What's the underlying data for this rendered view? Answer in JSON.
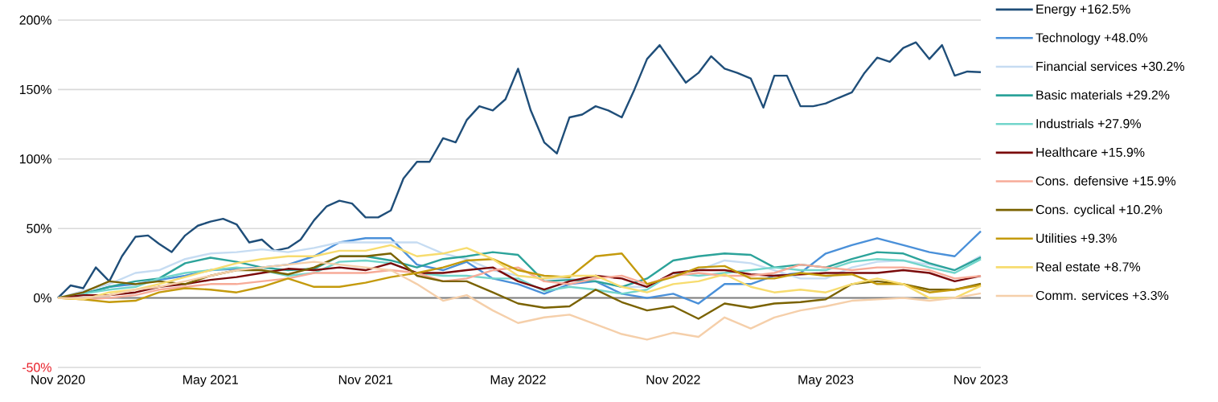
{
  "chart_data": {
    "type": "line",
    "ylim": [
      -50,
      200
    ],
    "yticks": [
      {
        "value": -50,
        "label": "-50%"
      },
      {
        "value": 0,
        "label": "0%"
      },
      {
        "value": 50,
        "label": "50%"
      },
      {
        "value": 100,
        "label": "100%"
      },
      {
        "value": 150,
        "label": "150%"
      },
      {
        "value": 200,
        "label": "200%"
      }
    ],
    "xlim": [
      "2020-11-01",
      "2023-11-01"
    ],
    "xticks": [
      {
        "value": "2020-11-01",
        "label": "Nov 2020"
      },
      {
        "value": "2021-05-01",
        "label": "May 2021"
      },
      {
        "value": "2021-11-01",
        "label": "Nov 2021"
      },
      {
        "value": "2022-05-01",
        "label": "May 2022"
      },
      {
        "value": "2022-11-01",
        "label": "Nov 2022"
      },
      {
        "value": "2023-05-01",
        "label": "May 2023"
      },
      {
        "value": "2023-11-01",
        "label": "Nov 2023"
      }
    ],
    "grid": "y",
    "legend": "right",
    "ref_lines": [
      {
        "axis": "y",
        "value": 0,
        "color": "#808080"
      }
    ],
    "series": [
      {
        "name": "Energy +162.5%",
        "color": "#1f4e79",
        "x": [
          "2020-11-01",
          "2020-11-16",
          "2020-12-01",
          "2020-12-16",
          "2021-01-01",
          "2021-01-16",
          "2021-02-01",
          "2021-02-16",
          "2021-03-01",
          "2021-03-16",
          "2021-04-01",
          "2021-04-16",
          "2021-05-01",
          "2021-05-16",
          "2021-06-01",
          "2021-06-16",
          "2021-07-01",
          "2021-07-16",
          "2021-08-01",
          "2021-08-16",
          "2021-09-01",
          "2021-09-16",
          "2021-10-01",
          "2021-10-16",
          "2021-11-01",
          "2021-11-16",
          "2021-12-01",
          "2021-12-16",
          "2022-01-01",
          "2022-01-16",
          "2022-02-01",
          "2022-02-16",
          "2022-03-01",
          "2022-03-16",
          "2022-04-01",
          "2022-04-16",
          "2022-05-01",
          "2022-05-16",
          "2022-06-01",
          "2022-06-16",
          "2022-07-01",
          "2022-07-16",
          "2022-08-01",
          "2022-08-16",
          "2022-09-01",
          "2022-09-16",
          "2022-10-01",
          "2022-10-16",
          "2022-11-01",
          "2022-11-16",
          "2022-12-01",
          "2022-12-16",
          "2023-01-01",
          "2023-01-16",
          "2023-02-01",
          "2023-02-16",
          "2023-03-01",
          "2023-03-16",
          "2023-04-01",
          "2023-04-16",
          "2023-05-01",
          "2023-05-16",
          "2023-06-01",
          "2023-06-16",
          "2023-07-01",
          "2023-07-16",
          "2023-08-01",
          "2023-08-16",
          "2023-09-01",
          "2023-09-16",
          "2023-10-01",
          "2023-10-16",
          "2023-11-01"
        ],
        "values": [
          0,
          9,
          7,
          22,
          12,
          30,
          44,
          45,
          39,
          33,
          45,
          52,
          55,
          57,
          53,
          40,
          42,
          34,
          36,
          42,
          56,
          66,
          70,
          68,
          58,
          58,
          63,
          86,
          98,
          98,
          115,
          112,
          128,
          138,
          135,
          143,
          165,
          135,
          112,
          104,
          130,
          132,
          138,
          135,
          130,
          150,
          172,
          182,
          168,
          155,
          162,
          174,
          165,
          162,
          158,
          137,
          160,
          160,
          138,
          138,
          140,
          144,
          148,
          162,
          173,
          170,
          180,
          184,
          172,
          182,
          160,
          163,
          162.5
        ]
      },
      {
        "name": "Technology +48.0%",
        "color": "#4a90d9",
        "x": [
          "2020-11-01",
          "2020-12-01",
          "2021-01-01",
          "2021-02-01",
          "2021-03-01",
          "2021-04-01",
          "2021-05-01",
          "2021-06-01",
          "2021-07-01",
          "2021-08-01",
          "2021-09-01",
          "2021-10-01",
          "2021-11-01",
          "2021-12-01",
          "2022-01-01",
          "2022-02-01",
          "2022-03-01",
          "2022-04-01",
          "2022-05-01",
          "2022-06-01",
          "2022-07-01",
          "2022-08-01",
          "2022-09-01",
          "2022-10-01",
          "2022-11-01",
          "2022-12-01",
          "2023-01-01",
          "2023-02-01",
          "2023-03-01",
          "2023-04-01",
          "2023-05-01",
          "2023-06-01",
          "2023-07-01",
          "2023-08-01",
          "2023-09-01",
          "2023-10-01",
          "2023-11-01"
        ],
        "values": [
          0,
          3,
          8,
          10,
          13,
          16,
          20,
          21,
          22,
          24,
          30,
          40,
          43,
          43,
          24,
          20,
          26,
          14,
          10,
          3,
          10,
          12,
          3,
          0,
          3,
          -4,
          10,
          10,
          16,
          18,
          32,
          38,
          43,
          38,
          33,
          30,
          48
        ]
      },
      {
        "name": "Financial services +30.2%",
        "color": "#c6dcf2",
        "x": [
          "2020-11-01",
          "2020-12-01",
          "2021-01-01",
          "2021-02-01",
          "2021-03-01",
          "2021-04-01",
          "2021-05-01",
          "2021-06-01",
          "2021-07-01",
          "2021-08-01",
          "2021-09-01",
          "2021-10-01",
          "2021-11-01",
          "2021-12-01",
          "2022-01-01",
          "2022-02-01",
          "2022-03-01",
          "2022-04-01",
          "2022-05-01",
          "2022-06-01",
          "2022-07-01",
          "2022-08-01",
          "2022-09-01",
          "2022-10-01",
          "2022-11-01",
          "2022-12-01",
          "2023-01-01",
          "2023-02-01",
          "2023-03-01",
          "2023-04-01",
          "2023-05-01",
          "2023-06-01",
          "2023-07-01",
          "2023-08-01",
          "2023-09-01",
          "2023-10-01",
          "2023-11-01"
        ],
        "values": [
          0,
          5,
          10,
          18,
          20,
          28,
          32,
          33,
          35,
          33,
          36,
          40,
          40,
          40,
          40,
          32,
          28,
          20,
          16,
          14,
          14,
          12,
          8,
          8,
          18,
          20,
          27,
          25,
          20,
          14,
          14,
          22,
          26,
          27,
          24,
          20,
          30.2
        ]
      },
      {
        "name": "Basic materials +29.2%",
        "color": "#2ca39a",
        "x": [
          "2020-11-01",
          "2020-12-01",
          "2021-01-01",
          "2021-02-01",
          "2021-03-01",
          "2021-04-01",
          "2021-05-01",
          "2021-06-01",
          "2021-07-01",
          "2021-08-01",
          "2021-09-01",
          "2021-10-01",
          "2021-11-01",
          "2021-12-01",
          "2022-01-01",
          "2022-02-01",
          "2022-03-01",
          "2022-04-01",
          "2022-05-01",
          "2022-06-01",
          "2022-07-01",
          "2022-08-01",
          "2022-09-01",
          "2022-10-01",
          "2022-11-01",
          "2022-12-01",
          "2023-01-01",
          "2023-02-01",
          "2023-03-01",
          "2023-04-01",
          "2023-05-01",
          "2023-06-01",
          "2023-07-01",
          "2023-08-01",
          "2023-09-01",
          "2023-10-01",
          "2023-11-01"
        ],
        "values": [
          0,
          3,
          8,
          12,
          14,
          25,
          29,
          26,
          22,
          20,
          21,
          30,
          30,
          27,
          22,
          28,
          30,
          33,
          31,
          12,
          13,
          12,
          8,
          14,
          27,
          30,
          32,
          31,
          22,
          24,
          22,
          28,
          33,
          32,
          25,
          20,
          29.2
        ]
      },
      {
        "name": "Industrials +27.9%",
        "color": "#72d5cb",
        "x": [
          "2020-11-01",
          "2020-12-01",
          "2021-01-01",
          "2021-02-01",
          "2021-03-01",
          "2021-04-01",
          "2021-05-01",
          "2021-06-01",
          "2021-07-01",
          "2021-08-01",
          "2021-09-01",
          "2021-10-01",
          "2021-11-01",
          "2021-12-01",
          "2022-01-01",
          "2022-02-01",
          "2022-03-01",
          "2022-04-01",
          "2022-05-01",
          "2022-06-01",
          "2022-07-01",
          "2022-08-01",
          "2022-09-01",
          "2022-10-01",
          "2022-11-01",
          "2022-12-01",
          "2023-01-01",
          "2023-02-01",
          "2023-03-01",
          "2023-04-01",
          "2023-05-01",
          "2023-06-01",
          "2023-07-01",
          "2023-08-01",
          "2023-09-01",
          "2023-10-01",
          "2023-11-01"
        ],
        "values": [
          0,
          3,
          6,
          8,
          14,
          18,
          20,
          22,
          20,
          16,
          18,
          26,
          27,
          25,
          18,
          16,
          16,
          14,
          14,
          5,
          8,
          6,
          3,
          6,
          18,
          16,
          18,
          20,
          22,
          20,
          20,
          26,
          28,
          27,
          22,
          18,
          27.9
        ]
      },
      {
        "name": "Healthcare +15.9%",
        "color": "#7a0a0a",
        "x": [
          "2020-11-01",
          "2020-12-01",
          "2021-01-01",
          "2021-02-01",
          "2021-03-01",
          "2021-04-01",
          "2021-05-01",
          "2021-06-01",
          "2021-07-01",
          "2021-08-01",
          "2021-09-01",
          "2021-10-01",
          "2021-11-01",
          "2021-12-01",
          "2022-01-01",
          "2022-02-01",
          "2022-03-01",
          "2022-04-01",
          "2022-05-01",
          "2022-06-01",
          "2022-07-01",
          "2022-08-01",
          "2022-09-01",
          "2022-10-01",
          "2022-11-01",
          "2022-12-01",
          "2023-01-01",
          "2023-02-01",
          "2023-03-01",
          "2023-04-01",
          "2023-05-01",
          "2023-06-01",
          "2023-07-01",
          "2023-08-01",
          "2023-09-01",
          "2023-10-01",
          "2023-11-01"
        ],
        "values": [
          0,
          2,
          2,
          4,
          8,
          10,
          13,
          15,
          18,
          21,
          20,
          22,
          20,
          25,
          18,
          18,
          20,
          22,
          12,
          6,
          12,
          16,
          14,
          8,
          18,
          20,
          20,
          17,
          16,
          17,
          18,
          18,
          18,
          20,
          18,
          12,
          15.9
        ]
      },
      {
        "name": "Cons. defensive +15.9%",
        "color": "#f7ab98",
        "x": [
          "2020-11-01",
          "2020-12-01",
          "2021-01-01",
          "2021-02-01",
          "2021-03-01",
          "2021-04-01",
          "2021-05-01",
          "2021-06-01",
          "2021-07-01",
          "2021-08-01",
          "2021-09-01",
          "2021-10-01",
          "2021-11-01",
          "2021-12-01",
          "2022-01-01",
          "2022-02-01",
          "2022-03-01",
          "2022-04-01",
          "2022-05-01",
          "2022-06-01",
          "2022-07-01",
          "2022-08-01",
          "2022-09-01",
          "2022-10-01",
          "2022-11-01",
          "2022-12-01",
          "2023-01-01",
          "2023-02-01",
          "2023-03-01",
          "2023-04-01",
          "2023-05-01",
          "2023-06-01",
          "2023-07-01",
          "2023-08-01",
          "2023-09-01",
          "2023-10-01",
          "2023-11-01"
        ],
        "values": [
          0,
          -1,
          0,
          2,
          6,
          8,
          10,
          10,
          12,
          14,
          18,
          18,
          18,
          20,
          18,
          12,
          14,
          20,
          22,
          12,
          10,
          14,
          16,
          10,
          16,
          18,
          16,
          16,
          18,
          24,
          22,
          20,
          22,
          22,
          20,
          14,
          15.9
        ]
      },
      {
        "name": "Cons. cyclical +10.2%",
        "color": "#7a6200",
        "x": [
          "2020-11-01",
          "2020-12-01",
          "2021-01-01",
          "2021-02-01",
          "2021-03-01",
          "2021-04-01",
          "2021-05-01",
          "2021-06-01",
          "2021-07-01",
          "2021-08-01",
          "2021-09-01",
          "2021-10-01",
          "2021-11-01",
          "2021-12-01",
          "2022-01-01",
          "2022-02-01",
          "2022-03-01",
          "2022-04-01",
          "2022-05-01",
          "2022-06-01",
          "2022-07-01",
          "2022-08-01",
          "2022-09-01",
          "2022-10-01",
          "2022-11-01",
          "2022-12-01",
          "2023-01-01",
          "2023-02-01",
          "2023-03-01",
          "2023-04-01",
          "2023-05-01",
          "2023-06-01",
          "2023-07-01",
          "2023-08-01",
          "2023-09-01",
          "2023-10-01",
          "2023-11-01"
        ],
        "values": [
          0,
          4,
          12,
          10,
          12,
          10,
          16,
          20,
          20,
          17,
          22,
          30,
          30,
          32,
          16,
          12,
          12,
          4,
          -4,
          -7,
          -6,
          6,
          -3,
          -9,
          -6,
          -15,
          -4,
          -7,
          -4,
          -3,
          -1,
          10,
          12,
          10,
          6,
          6,
          10.2
        ]
      },
      {
        "name": "Utilities +9.3%",
        "color": "#c49a0c",
        "x": [
          "2020-11-01",
          "2020-12-01",
          "2021-01-01",
          "2021-02-01",
          "2021-03-01",
          "2021-04-01",
          "2021-05-01",
          "2021-06-01",
          "2021-07-01",
          "2021-08-01",
          "2021-09-01",
          "2021-10-01",
          "2021-11-01",
          "2021-12-01",
          "2022-01-01",
          "2022-02-01",
          "2022-03-01",
          "2022-04-01",
          "2022-05-01",
          "2022-06-01",
          "2022-07-01",
          "2022-08-01",
          "2022-09-01",
          "2022-10-01",
          "2022-11-01",
          "2022-12-01",
          "2023-01-01",
          "2023-02-01",
          "2023-03-01",
          "2023-04-01",
          "2023-05-01",
          "2023-06-01",
          "2023-07-01",
          "2023-08-01",
          "2023-09-01",
          "2023-10-01",
          "2023-11-01"
        ],
        "values": [
          0,
          -1,
          -3,
          -2,
          4,
          7,
          6,
          4,
          8,
          14,
          8,
          8,
          11,
          15,
          18,
          22,
          27,
          28,
          20,
          16,
          15,
          30,
          32,
          10,
          15,
          22,
          23,
          14,
          14,
          18,
          16,
          17,
          10,
          10,
          4,
          6,
          9.3
        ]
      },
      {
        "name": "Real estate +8.7%",
        "color": "#f7dc6f",
        "x": [
          "2020-11-01",
          "2020-12-01",
          "2021-01-01",
          "2021-02-01",
          "2021-03-01",
          "2021-04-01",
          "2021-05-01",
          "2021-06-01",
          "2021-07-01",
          "2021-08-01",
          "2021-09-01",
          "2021-10-01",
          "2021-11-01",
          "2021-12-01",
          "2022-01-01",
          "2022-02-01",
          "2022-03-01",
          "2022-04-01",
          "2022-05-01",
          "2022-06-01",
          "2022-07-01",
          "2022-08-01",
          "2022-09-01",
          "2022-10-01",
          "2022-11-01",
          "2022-12-01",
          "2023-01-01",
          "2023-02-01",
          "2023-03-01",
          "2023-04-01",
          "2023-05-01",
          "2023-06-01",
          "2023-07-01",
          "2023-08-01",
          "2023-09-01",
          "2023-10-01",
          "2023-11-01"
        ],
        "values": [
          0,
          -1,
          4,
          6,
          10,
          15,
          20,
          25,
          28,
          30,
          30,
          34,
          34,
          38,
          30,
          32,
          36,
          28,
          16,
          14,
          16,
          16,
          8,
          4,
          10,
          12,
          17,
          8,
          4,
          6,
          4,
          10,
          14,
          10,
          0,
          0,
          8.7
        ]
      },
      {
        "name": "Comm. services +3.3%",
        "color": "#f5cfaa",
        "x": [
          "2020-11-01",
          "2020-12-01",
          "2021-01-01",
          "2021-02-01",
          "2021-03-01",
          "2021-04-01",
          "2021-05-01",
          "2021-06-01",
          "2021-07-01",
          "2021-08-01",
          "2021-09-01",
          "2021-10-01",
          "2021-11-01",
          "2021-12-01",
          "2022-01-01",
          "2022-02-01",
          "2022-03-01",
          "2022-04-01",
          "2022-05-01",
          "2022-06-01",
          "2022-07-01",
          "2022-08-01",
          "2022-09-01",
          "2022-10-01",
          "2022-11-01",
          "2022-12-01",
          "2023-01-01",
          "2023-02-01",
          "2023-03-01",
          "2023-04-01",
          "2023-05-01",
          "2023-06-01",
          "2023-07-01",
          "2023-08-01",
          "2023-09-01",
          "2023-10-01",
          "2023-11-01"
        ],
        "values": [
          0,
          0,
          2,
          6,
          8,
          12,
          16,
          20,
          22,
          24,
          26,
          24,
          22,
          20,
          10,
          -2,
          2,
          -9,
          -18,
          -14,
          -12,
          -19,
          -26,
          -30,
          -25,
          -28,
          -14,
          -22,
          -14,
          -9,
          -6,
          -2,
          -1,
          0,
          -2,
          0,
          3.3
        ]
      }
    ]
  }
}
